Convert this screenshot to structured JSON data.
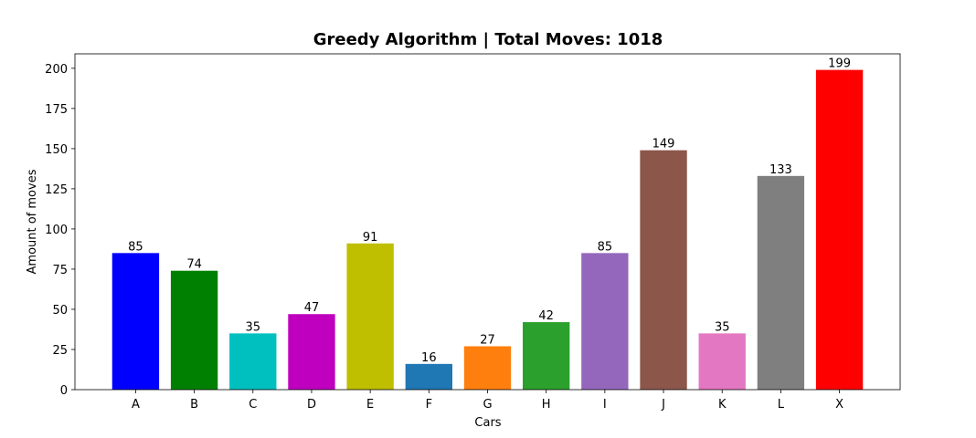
{
  "chart_data": {
    "type": "bar",
    "title": "Greedy Algorithm | Total Moves: 1018",
    "xlabel": "Cars",
    "ylabel": "Amount of moves",
    "ylim": [
      0,
      209
    ],
    "yticks": [
      0,
      25,
      50,
      75,
      100,
      125,
      150,
      175,
      200
    ],
    "categories": [
      "A",
      "B",
      "C",
      "D",
      "E",
      "F",
      "G",
      "H",
      "I",
      "J",
      "K",
      "L",
      "X"
    ],
    "values": [
      85,
      74,
      35,
      47,
      91,
      16,
      27,
      42,
      85,
      149,
      35,
      133,
      199
    ],
    "colors": [
      "#0000ff",
      "#008000",
      "#00bfbf",
      "#bf00bf",
      "#bfbf00",
      "#1f77b4",
      "#ff7f0e",
      "#2ca02c",
      "#9467bd",
      "#8c564b",
      "#e377c2",
      "#7f7f7f",
      "#ff0000"
    ],
    "grid": false
  }
}
